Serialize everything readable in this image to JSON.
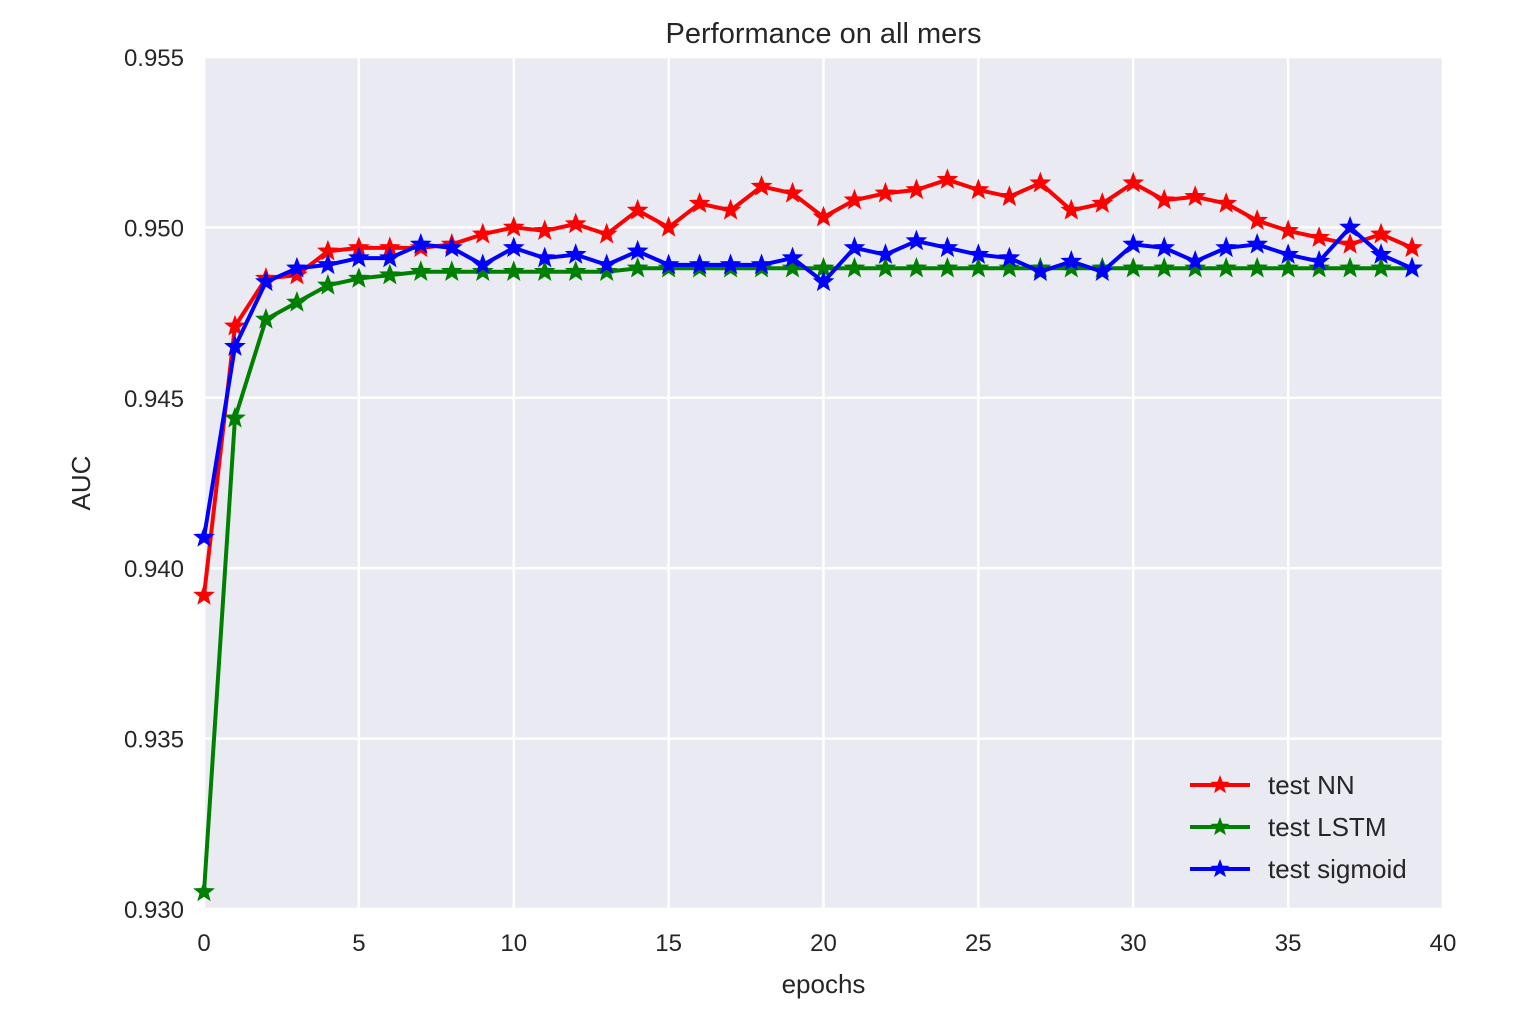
{
  "chart_data": {
    "type": "line",
    "title": "Performance on all mers",
    "xlabel": "epochs",
    "ylabel": "AUC",
    "xlim": [
      0,
      40
    ],
    "ylim": [
      0.93,
      0.955
    ],
    "xticks": [
      "0",
      "5",
      "10",
      "15",
      "20",
      "25",
      "30",
      "35",
      "40"
    ],
    "yticks": [
      "0.930",
      "0.935",
      "0.940",
      "0.945",
      "0.950",
      "0.955"
    ],
    "grid": true,
    "legend_position": "lower-right",
    "marker": "star",
    "x": [
      0,
      1,
      2,
      3,
      4,
      5,
      6,
      7,
      8,
      9,
      10,
      11,
      12,
      13,
      14,
      15,
      16,
      17,
      18,
      19,
      20,
      21,
      22,
      23,
      24,
      25,
      26,
      27,
      28,
      29,
      30,
      31,
      32,
      33,
      34,
      35,
      36,
      37,
      38,
      39
    ],
    "series": [
      {
        "name": "test NN",
        "color": "#ff0000",
        "values": [
          0.9392,
          0.9471,
          0.9485,
          0.9486,
          0.9493,
          0.9494,
          0.9494,
          0.9494,
          0.9495,
          0.9498,
          0.95,
          0.9499,
          0.9501,
          0.9498,
          0.9505,
          0.95,
          0.9507,
          0.9505,
          0.9512,
          0.951,
          0.9503,
          0.9508,
          0.951,
          0.9511,
          0.9514,
          0.9511,
          0.9509,
          0.9513,
          0.9505,
          0.9507,
          0.9513,
          0.9508,
          0.9509,
          0.9507,
          0.9502,
          0.9499,
          0.9497,
          0.9495,
          0.9498,
          0.9494
        ]
      },
      {
        "name": "test LSTM",
        "color": "#008000",
        "values": [
          0.9305,
          0.9444,
          0.9473,
          0.9478,
          0.9483,
          0.9485,
          0.9486,
          0.9487,
          0.9487,
          0.9487,
          0.9487,
          0.9487,
          0.9487,
          0.9487,
          0.9488,
          0.9488,
          0.9488,
          0.9488,
          0.9488,
          0.9488,
          0.9488,
          0.9488,
          0.9488,
          0.9488,
          0.9488,
          0.9488,
          0.9488,
          0.9488,
          0.9488,
          0.9488,
          0.9488,
          0.9488,
          0.9488,
          0.9488,
          0.9488,
          0.9488,
          0.9488,
          0.9488,
          0.9488,
          0.9488
        ]
      },
      {
        "name": "test sigmoid",
        "color": "#0000ff",
        "values": [
          0.9409,
          0.9465,
          0.9484,
          0.9488,
          0.9489,
          0.9491,
          0.9491,
          0.9495,
          0.9494,
          0.9489,
          0.9494,
          0.9491,
          0.9492,
          0.9489,
          0.9493,
          0.9489,
          0.9489,
          0.9489,
          0.9489,
          0.9491,
          0.9484,
          0.9494,
          0.9492,
          0.9496,
          0.9494,
          0.9492,
          0.9491,
          0.9487,
          0.949,
          0.9487,
          0.9495,
          0.9494,
          0.949,
          0.9494,
          0.9495,
          0.9492,
          0.949,
          0.95,
          0.9492,
          0.9488
        ]
      }
    ]
  }
}
